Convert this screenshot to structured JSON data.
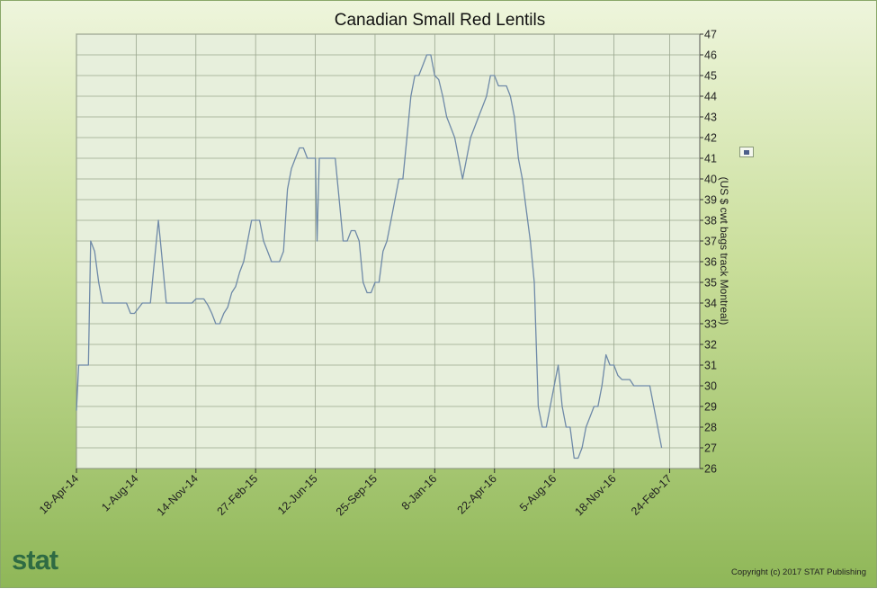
{
  "chart_data": {
    "type": "line",
    "title": "Canadian Small Red Lentils",
    "ylabel": "(US $ cwt bags track Montreal)",
    "xlabel": "",
    "ylim": [
      26,
      47
    ],
    "y_ticks": [
      26,
      27,
      28,
      29,
      30,
      31,
      32,
      33,
      34,
      35,
      36,
      37,
      38,
      39,
      40,
      41,
      42,
      43,
      44,
      45,
      46,
      47
    ],
    "y_axis_position": "right",
    "x_range": [
      "2014-04-18",
      "2017-04-18"
    ],
    "x_ticks": [
      {
        "date": "2014-04-18",
        "label": "18-Apr-14"
      },
      {
        "date": "2014-08-01",
        "label": "1-Aug-14"
      },
      {
        "date": "2014-11-14",
        "label": "14-Nov-14"
      },
      {
        "date": "2015-02-27",
        "label": "27-Feb-15"
      },
      {
        "date": "2015-06-12",
        "label": "12-Jun-15"
      },
      {
        "date": "2015-09-25",
        "label": "25-Sep-15"
      },
      {
        "date": "2016-01-08",
        "label": "8-Jan-16"
      },
      {
        "date": "2016-04-22",
        "label": "22-Apr-16"
      },
      {
        "date": "2016-08-05",
        "label": "5-Aug-16"
      },
      {
        "date": "2016-11-18",
        "label": "18-Nov-16"
      },
      {
        "date": "2017-02-24",
        "label": "24-Feb-17"
      }
    ],
    "grid": true,
    "legend": "right",
    "line_color": "#6f8aa8",
    "plot_background": "#e7efdc",
    "series": [
      {
        "values": [
          [
            "2014-04-18",
            28.8
          ],
          [
            "2014-04-22",
            31.0
          ],
          [
            "2014-05-09",
            31.0
          ],
          [
            "2014-05-13",
            37.0
          ],
          [
            "2014-05-20",
            36.5
          ],
          [
            "2014-05-27",
            35.0
          ],
          [
            "2014-06-03",
            34.0
          ],
          [
            "2014-07-15",
            34.0
          ],
          [
            "2014-07-22",
            33.5
          ],
          [
            "2014-07-29",
            33.5
          ],
          [
            "2014-08-12",
            34.0
          ],
          [
            "2014-08-26",
            34.0
          ],
          [
            "2014-09-02",
            36.0
          ],
          [
            "2014-09-09",
            38.0
          ],
          [
            "2014-09-16",
            36.0
          ],
          [
            "2014-09-23",
            34.0
          ],
          [
            "2014-11-07",
            34.0
          ],
          [
            "2014-11-14",
            34.2
          ],
          [
            "2014-11-28",
            34.2
          ],
          [
            "2014-12-05",
            33.9
          ],
          [
            "2014-12-12",
            33.5
          ],
          [
            "2014-12-19",
            33.0
          ],
          [
            "2014-12-26",
            33.0
          ],
          [
            "2015-01-02",
            33.5
          ],
          [
            "2015-01-09",
            33.8
          ],
          [
            "2015-01-16",
            34.5
          ],
          [
            "2015-01-23",
            34.8
          ],
          [
            "2015-01-30",
            35.5
          ],
          [
            "2015-02-06",
            36.0
          ],
          [
            "2015-02-13",
            37.0
          ],
          [
            "2015-02-20",
            38.0
          ],
          [
            "2015-03-06",
            38.0
          ],
          [
            "2015-03-13",
            37.0
          ],
          [
            "2015-03-20",
            36.5
          ],
          [
            "2015-03-27",
            36.0
          ],
          [
            "2015-04-10",
            36.0
          ],
          [
            "2015-04-17",
            36.5
          ],
          [
            "2015-04-24",
            39.5
          ],
          [
            "2015-05-01",
            40.5
          ],
          [
            "2015-05-08",
            41.0
          ],
          [
            "2015-05-15",
            41.5
          ],
          [
            "2015-05-22",
            41.5
          ],
          [
            "2015-05-29",
            41.0
          ],
          [
            "2015-06-12",
            41.0
          ],
          [
            "2015-06-15",
            37.0
          ],
          [
            "2015-06-19",
            41.0
          ],
          [
            "2015-07-17",
            41.0
          ],
          [
            "2015-07-31",
            37.0
          ],
          [
            "2015-08-07",
            37.0
          ],
          [
            "2015-08-14",
            37.5
          ],
          [
            "2015-08-21",
            37.5
          ],
          [
            "2015-08-28",
            37.0
          ],
          [
            "2015-09-04",
            35.0
          ],
          [
            "2015-09-11",
            34.5
          ],
          [
            "2015-09-18",
            34.5
          ],
          [
            "2015-09-25",
            35.0
          ],
          [
            "2015-10-02",
            35.0
          ],
          [
            "2015-10-09",
            36.5
          ],
          [
            "2015-10-16",
            37.0
          ],
          [
            "2015-10-23",
            38.0
          ],
          [
            "2015-10-30",
            39.0
          ],
          [
            "2015-11-06",
            40.0
          ],
          [
            "2015-11-13",
            40.0
          ],
          [
            "2015-11-20",
            42.0
          ],
          [
            "2015-11-27",
            44.0
          ],
          [
            "2015-12-04",
            45.0
          ],
          [
            "2015-12-11",
            45.0
          ],
          [
            "2015-12-18",
            45.5
          ],
          [
            "2015-12-25",
            46.0
          ],
          [
            "2016-01-01",
            46.0
          ],
          [
            "2016-01-08",
            45.0
          ],
          [
            "2016-01-15",
            44.8
          ],
          [
            "2016-01-22",
            44.0
          ],
          [
            "2016-01-29",
            43.0
          ],
          [
            "2016-02-05",
            42.5
          ],
          [
            "2016-02-12",
            42.0
          ],
          [
            "2016-02-19",
            41.0
          ],
          [
            "2016-02-26",
            40.0
          ],
          [
            "2016-03-04",
            41.0
          ],
          [
            "2016-03-11",
            42.0
          ],
          [
            "2016-03-18",
            42.5
          ],
          [
            "2016-03-25",
            43.0
          ],
          [
            "2016-04-01",
            43.5
          ],
          [
            "2016-04-08",
            44.0
          ],
          [
            "2016-04-15",
            45.0
          ],
          [
            "2016-04-22",
            45.0
          ],
          [
            "2016-04-29",
            44.5
          ],
          [
            "2016-05-13",
            44.5
          ],
          [
            "2016-05-20",
            44.0
          ],
          [
            "2016-05-27",
            43.0
          ],
          [
            "2016-06-03",
            41.0
          ],
          [
            "2016-06-10",
            40.0
          ],
          [
            "2016-06-17",
            38.5
          ],
          [
            "2016-06-24",
            37.0
          ],
          [
            "2016-07-01",
            35.0
          ],
          [
            "2016-07-08",
            29.0
          ],
          [
            "2016-07-15",
            28.0
          ],
          [
            "2016-07-22",
            28.0
          ],
          [
            "2016-07-29",
            29.0
          ],
          [
            "2016-08-05",
            30.0
          ],
          [
            "2016-08-12",
            31.0
          ],
          [
            "2016-08-19",
            29.0
          ],
          [
            "2016-08-26",
            28.0
          ],
          [
            "2016-09-02",
            28.0
          ],
          [
            "2016-09-09",
            26.5
          ],
          [
            "2016-09-16",
            26.5
          ],
          [
            "2016-09-23",
            27.0
          ],
          [
            "2016-09-30",
            28.0
          ],
          [
            "2016-10-07",
            28.5
          ],
          [
            "2016-10-14",
            29.0
          ],
          [
            "2016-10-21",
            29.0
          ],
          [
            "2016-10-28",
            30.0
          ],
          [
            "2016-11-04",
            31.5
          ],
          [
            "2016-11-11",
            31.0
          ],
          [
            "2016-11-18",
            31.0
          ],
          [
            "2016-11-25",
            30.5
          ],
          [
            "2016-12-02",
            30.3
          ],
          [
            "2016-12-16",
            30.3
          ],
          [
            "2016-12-23",
            30.0
          ],
          [
            "2017-01-20",
            30.0
          ],
          [
            "2017-01-27",
            29.0
          ],
          [
            "2017-02-03",
            28.0
          ],
          [
            "2017-02-10",
            27.0
          ]
        ]
      }
    ]
  },
  "footer": {
    "logo": "stat",
    "copyright": "Copyright (c) 2017 STAT Publishing"
  }
}
